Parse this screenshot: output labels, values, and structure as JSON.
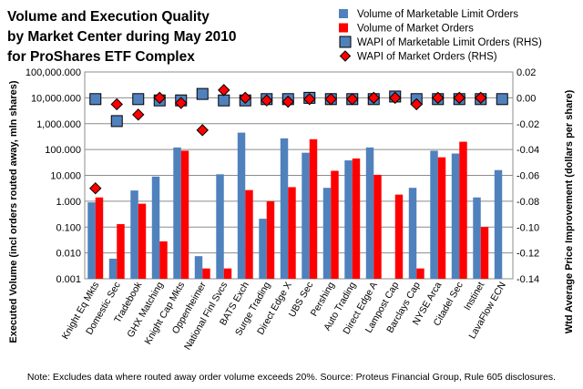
{
  "chart_data": {
    "type": "bar",
    "title": [
      "Volume and Execution Quality",
      "by Market Center during May 2010",
      "for ProShares ETF Complex"
    ],
    "ylabel_left": "Executed Volume (incl orders routed away, mln shares)",
    "ylabel_right": "Wtd Average Price Improvement (dollars per share)",
    "note": "Note: Excludes data where routed away order volume exceeds 20%. Source: Proteus Financial Group, Rule 605 disclosures.",
    "y_left": {
      "scale": "log",
      "min": 0.001,
      "max": 100000,
      "ticks": [
        "0.001",
        "0.010",
        "0.100",
        "1.000",
        "10.000",
        "100.000",
        "1,000.000",
        "10,000.000",
        "100,000.000"
      ]
    },
    "y_right": {
      "scale": "linear",
      "min": -0.14,
      "max": 0.02,
      "ticks": [
        "-0.14",
        "-0.12",
        "-0.10",
        "-0.08",
        "-0.06",
        "-0.04",
        "-0.02",
        "0.00",
        "0.02"
      ]
    },
    "grid": true,
    "legend_position": "top-right",
    "categories": [
      "Knight Eq Mkts",
      "Domestic Sec",
      "Tradebook",
      "GHX Matching",
      "Knight Cap Mkts",
      "Oppenheimer",
      "National Finl Svcs",
      "BATS Exch",
      "Surge Trading",
      "Direct Edge X",
      "UBS Sec",
      "Pershing",
      "Auto Trading",
      "Direct Edge A",
      "Lampost Cap",
      "Barclays Cap",
      "NYSE Arca",
      "Citadel Sec",
      "Instinet",
      "LavaFlow ECN"
    ],
    "series": [
      {
        "name": "Volume of Marketable Limit Orders",
        "axis": "left",
        "kind": "bar",
        "color": "#4f81bd",
        "values": [
          0.9,
          0.006,
          2.6,
          9,
          120,
          0.0075,
          11,
          450,
          0.21,
          270,
          75,
          3.3,
          38,
          120,
          0.001,
          3.3,
          90,
          70,
          1.4,
          16
        ]
      },
      {
        "name": "Volume of Market Orders",
        "axis": "left",
        "kind": "bar",
        "color": "#ff0000",
        "values": [
          1.4,
          0.13,
          0.8,
          0.028,
          90,
          0.0025,
          0.0025,
          2.7,
          1,
          3.5,
          250,
          15,
          45,
          10.5,
          1.8,
          0.0025,
          50,
          200,
          0.1,
          null
        ]
      },
      {
        "name": "WAPI of Marketable Limit Orders (RHS)",
        "axis": "right",
        "kind": "marker",
        "marker": "square",
        "color": "#4f81bd",
        "values": [
          -0.001,
          -0.018,
          -0.001,
          -0.002,
          -0.002,
          0.003,
          -0.002,
          -0.002,
          -0.001,
          -0.001,
          0.0,
          -0.001,
          -0.001,
          -0.001,
          0.001,
          -0.001,
          -0.001,
          -0.001,
          -0.001,
          -0.001
        ]
      },
      {
        "name": "WAPI of Market Orders (RHS)",
        "axis": "right",
        "kind": "marker",
        "marker": "diamond",
        "color": "#ff0000",
        "values": [
          -0.07,
          -0.005,
          -0.013,
          0.0,
          -0.004,
          -0.025,
          0.006,
          0.0,
          -0.002,
          -0.003,
          -0.001,
          -0.001,
          -0.001,
          0.0,
          0.0,
          -0.005,
          0.0,
          0.0,
          0.0,
          null
        ]
      }
    ]
  }
}
